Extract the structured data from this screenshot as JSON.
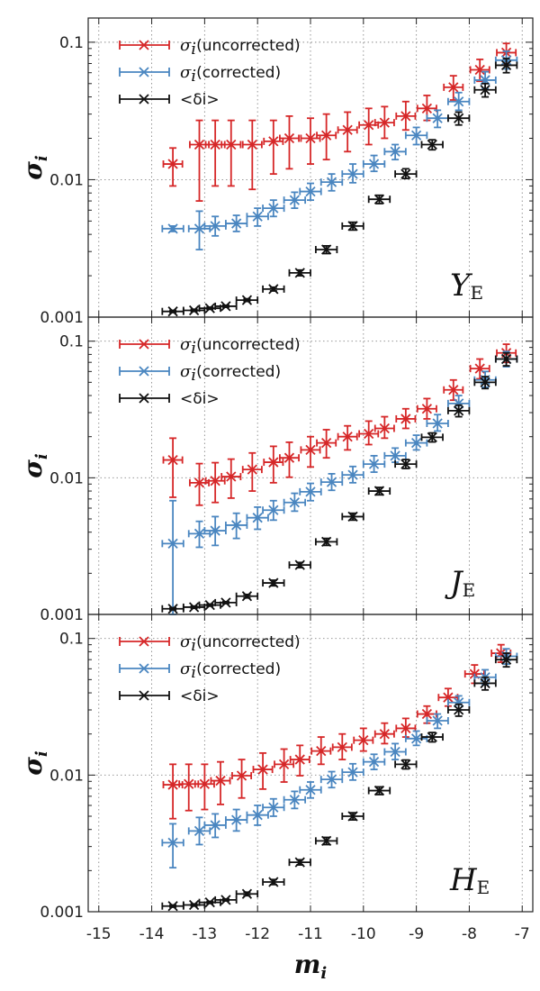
{
  "chart_data": [
    {
      "type": "scatter",
      "panel_label": "Y",
      "panel_label_sub": "E",
      "ylabel": "σ",
      "ylabel_sub": "i",
      "xlabel": "m",
      "xlabel_sub": "i",
      "xlim": [
        -15.2,
        -6.8
      ],
      "ylim": [
        0.001,
        0.15
      ],
      "yscale": "log",
      "grid": true,
      "legend_position": "top-left",
      "x_ticks": [
        "-15",
        "-14",
        "-13",
        "-12",
        "-11",
        "-10",
        "-9",
        "-8",
        "-7"
      ],
      "y_ticks": [
        "0.001",
        "0.01",
        "0.1"
      ],
      "series": [
        {
          "name": "σi (uncorrected)",
          "legend_symbol": "σ",
          "legend_symbol_sub": "i",
          "legend_text": "(uncorrected)",
          "color": "#d62728",
          "x": [
            -13.6,
            -13.1,
            -12.8,
            -12.5,
            -12.1,
            -11.7,
            -11.4,
            -11.0,
            -10.7,
            -10.3,
            -9.9,
            -9.6,
            -9.2,
            -8.8,
            -8.3,
            -7.8,
            -7.3
          ],
          "y": [
            0.013,
            0.018,
            0.018,
            0.018,
            0.018,
            0.019,
            0.02,
            0.02,
            0.021,
            0.023,
            0.025,
            0.026,
            0.029,
            0.033,
            0.047,
            0.063,
            0.084
          ],
          "ylo": [
            0.009,
            0.007,
            0.009,
            0.009,
            0.0085,
            0.011,
            0.012,
            0.013,
            0.014,
            0.016,
            0.018,
            0.02,
            0.023,
            0.027,
            0.038,
            0.052,
            0.07
          ],
          "yhi": [
            0.017,
            0.027,
            0.027,
            0.027,
            0.027,
            0.027,
            0.029,
            0.028,
            0.03,
            0.031,
            0.033,
            0.034,
            0.037,
            0.041,
            0.057,
            0.075,
            0.098
          ],
          "xerr": 0.18
        },
        {
          "name": "σi (corrected)",
          "legend_symbol": "σ",
          "legend_symbol_sub": "i",
          "legend_text": "(corrected)",
          "color": "#4a86c0",
          "x": [
            -13.6,
            -13.1,
            -12.8,
            -12.4,
            -12.0,
            -11.7,
            -11.3,
            -11.0,
            -10.6,
            -10.2,
            -9.8,
            -9.4,
            -9.0,
            -8.6,
            -8.2,
            -7.7,
            -7.3
          ],
          "y": [
            0.0044,
            0.0044,
            0.0046,
            0.0048,
            0.0054,
            0.0062,
            0.0071,
            0.0082,
            0.0096,
            0.011,
            0.013,
            0.016,
            0.021,
            0.028,
            0.037,
            0.053,
            0.074
          ],
          "ylo": [
            0.0042,
            0.0031,
            0.0039,
            0.0042,
            0.0046,
            0.0054,
            0.0062,
            0.0071,
            0.0083,
            0.0095,
            0.0115,
            0.014,
            0.018,
            0.024,
            0.032,
            0.046,
            0.064
          ],
          "yhi": [
            0.0046,
            0.0059,
            0.0054,
            0.0055,
            0.0062,
            0.0071,
            0.0081,
            0.0094,
            0.011,
            0.013,
            0.015,
            0.018,
            0.024,
            0.032,
            0.043,
            0.061,
            0.086
          ],
          "xerr": 0.2
        },
        {
          "name": "<δi>",
          "legend_symbol": "",
          "legend_symbol_sub": "",
          "legend_text": "<δi>",
          "color": "#111111",
          "x": [
            -13.6,
            -13.2,
            -12.9,
            -12.6,
            -12.2,
            -11.7,
            -11.2,
            -10.7,
            -10.2,
            -9.7,
            -9.2,
            -8.7,
            -8.2,
            -7.7,
            -7.3
          ],
          "y": [
            0.0011,
            0.00112,
            0.00116,
            0.0012,
            0.00133,
            0.0016,
            0.0021,
            0.0031,
            0.0046,
            0.0072,
            0.011,
            0.018,
            0.028,
            0.045,
            0.068
          ],
          "ylo": [
            0.00108,
            0.0011,
            0.00114,
            0.00118,
            0.0013,
            0.00155,
            0.002,
            0.0029,
            0.0043,
            0.0067,
            0.0102,
            0.0165,
            0.025,
            0.04,
            0.06
          ],
          "yhi": [
            0.00112,
            0.00114,
            0.00118,
            0.00122,
            0.00136,
            0.00165,
            0.0022,
            0.0033,
            0.0049,
            0.0077,
            0.012,
            0.0195,
            0.031,
            0.05,
            0.076
          ],
          "xerr": 0.2
        }
      ]
    },
    {
      "type": "scatter",
      "panel_label": "J",
      "panel_label_sub": "E",
      "ylabel": "σ",
      "ylabel_sub": "i",
      "xlabel": "m",
      "xlabel_sub": "i",
      "xlim": [
        -15.2,
        -6.8
      ],
      "ylim": [
        0.001,
        0.15
      ],
      "yscale": "log",
      "grid": true,
      "legend_position": "top-left",
      "x_ticks": [
        "-15",
        "-14",
        "-13",
        "-12",
        "-11",
        "-10",
        "-9",
        "-8",
        "-7"
      ],
      "y_ticks": [
        "0.001",
        "0.01",
        "0.1"
      ],
      "series": [
        {
          "name": "σi (uncorrected)",
          "legend_symbol": "σ",
          "legend_symbol_sub": "i",
          "legend_text": "(uncorrected)",
          "color": "#d62728",
          "x": [
            -13.6,
            -13.1,
            -12.8,
            -12.5,
            -12.1,
            -11.7,
            -11.4,
            -11.0,
            -10.7,
            -10.3,
            -9.9,
            -9.6,
            -9.2,
            -8.8,
            -8.3,
            -7.8,
            -7.3
          ],
          "y": [
            0.0135,
            0.0092,
            0.0095,
            0.0102,
            0.0115,
            0.013,
            0.014,
            0.016,
            0.018,
            0.02,
            0.021,
            0.023,
            0.027,
            0.032,
            0.044,
            0.063,
            0.082
          ],
          "ylo": [
            0.0072,
            0.0063,
            0.0066,
            0.0071,
            0.008,
            0.0092,
            0.0101,
            0.012,
            0.014,
            0.016,
            0.0175,
            0.0195,
            0.023,
            0.027,
            0.037,
            0.053,
            0.07
          ],
          "yhi": [
            0.0195,
            0.0127,
            0.0129,
            0.0137,
            0.0152,
            0.017,
            0.0182,
            0.02,
            0.0225,
            0.024,
            0.026,
            0.028,
            0.032,
            0.038,
            0.052,
            0.074,
            0.095
          ],
          "xerr": 0.18
        },
        {
          "name": "σi (corrected)",
          "legend_symbol": "σ",
          "legend_symbol_sub": "i",
          "legend_text": "(corrected)",
          "color": "#4a86c0",
          "x": [
            -13.6,
            -13.1,
            -12.8,
            -12.4,
            -12.0,
            -11.7,
            -11.3,
            -11.0,
            -10.6,
            -10.2,
            -9.8,
            -9.4,
            -9.0,
            -8.6,
            -8.2,
            -7.7,
            -7.3
          ],
          "y": [
            0.0033,
            0.0039,
            0.0041,
            0.0045,
            0.0051,
            0.0058,
            0.0066,
            0.0079,
            0.0093,
            0.0105,
            0.0126,
            0.0145,
            0.018,
            0.025,
            0.035,
            0.052,
            0.074
          ],
          "ylo": [
            0.001,
            0.0031,
            0.0032,
            0.0036,
            0.0042,
            0.0049,
            0.0057,
            0.0068,
            0.0081,
            0.0092,
            0.011,
            0.013,
            0.016,
            0.022,
            0.031,
            0.046,
            0.065
          ],
          "yhi": [
            0.0068,
            0.0048,
            0.0052,
            0.0055,
            0.0061,
            0.0068,
            0.0077,
            0.0091,
            0.0107,
            0.0121,
            0.0145,
            0.0165,
            0.0205,
            0.029,
            0.04,
            0.06,
            0.084
          ],
          "xerr": 0.2
        },
        {
          "name": "<δi>",
          "legend_symbol": "",
          "legend_symbol_sub": "",
          "legend_text": "<δi>",
          "color": "#111111",
          "x": [
            -13.6,
            -13.2,
            -12.9,
            -12.6,
            -12.2,
            -11.7,
            -11.2,
            -10.7,
            -10.2,
            -9.7,
            -9.2,
            -8.7,
            -8.2,
            -7.7,
            -7.3
          ],
          "y": [
            0.0011,
            0.00113,
            0.00117,
            0.00122,
            0.00136,
            0.0017,
            0.0023,
            0.0034,
            0.0052,
            0.008,
            0.0126,
            0.0198,
            0.031,
            0.05,
            0.074
          ],
          "ylo": [
            0.00108,
            0.00111,
            0.00115,
            0.0012,
            0.00132,
            0.00162,
            0.0022,
            0.0032,
            0.0049,
            0.0075,
            0.0117,
            0.0183,
            0.028,
            0.045,
            0.066
          ],
          "yhi": [
            0.00112,
            0.00115,
            0.00119,
            0.00124,
            0.0014,
            0.00178,
            0.0024,
            0.0036,
            0.0055,
            0.0085,
            0.0136,
            0.0213,
            0.034,
            0.055,
            0.082
          ],
          "xerr": 0.2
        }
      ]
    },
    {
      "type": "scatter",
      "panel_label": "H",
      "panel_label_sub": "E",
      "ylabel": "σ",
      "ylabel_sub": "i",
      "xlabel": "m",
      "xlabel_sub": "i",
      "xlim": [
        -15.2,
        -6.8
      ],
      "ylim": [
        0.001,
        0.15
      ],
      "yscale": "log",
      "grid": true,
      "legend_position": "top-left",
      "x_ticks": [
        "-15",
        "-14",
        "-13",
        "-12",
        "-11",
        "-10",
        "-9",
        "-8",
        "-7"
      ],
      "y_ticks": [
        "0.001",
        "0.01",
        "0.1"
      ],
      "series": [
        {
          "name": "σi (uncorrected)",
          "legend_symbol": "σ",
          "legend_symbol_sub": "i",
          "legend_text": "(uncorrected)",
          "color": "#d62728",
          "x": [
            -13.6,
            -13.3,
            -13.0,
            -12.7,
            -12.3,
            -11.9,
            -11.5,
            -11.2,
            -10.8,
            -10.4,
            -10.0,
            -9.6,
            -9.2,
            -8.8,
            -8.4,
            -7.9,
            -7.4
          ],
          "y": [
            0.0085,
            0.0086,
            0.0086,
            0.0091,
            0.0099,
            0.011,
            0.012,
            0.013,
            0.015,
            0.016,
            0.018,
            0.02,
            0.022,
            0.028,
            0.037,
            0.055,
            0.078
          ],
          "ylo": [
            0.0048,
            0.0055,
            0.0056,
            0.0061,
            0.0068,
            0.0079,
            0.0089,
            0.0099,
            0.012,
            0.013,
            0.015,
            0.017,
            0.019,
            0.024,
            0.032,
            0.047,
            0.067
          ],
          "yhi": [
            0.012,
            0.012,
            0.012,
            0.0125,
            0.013,
            0.0145,
            0.0155,
            0.0165,
            0.019,
            0.02,
            0.022,
            0.024,
            0.026,
            0.032,
            0.043,
            0.064,
            0.09
          ],
          "xerr": 0.18
        },
        {
          "name": "σi (corrected)",
          "legend_symbol": "σ",
          "legend_symbol_sub": "i",
          "legend_text": "(corrected)",
          "color": "#4a86c0",
          "x": [
            -13.6,
            -13.1,
            -12.8,
            -12.4,
            -12.0,
            -11.7,
            -11.3,
            -11.0,
            -10.6,
            -10.2,
            -9.8,
            -9.4,
            -9.0,
            -8.6,
            -8.2,
            -7.7,
            -7.3
          ],
          "y": [
            0.0032,
            0.0039,
            0.0043,
            0.0047,
            0.0051,
            0.0058,
            0.0066,
            0.0078,
            0.0093,
            0.0105,
            0.0125,
            0.0148,
            0.0185,
            0.025,
            0.034,
            0.052,
            0.074
          ],
          "ylo": [
            0.0021,
            0.0031,
            0.0035,
            0.0039,
            0.0043,
            0.005,
            0.0057,
            0.0068,
            0.0081,
            0.0092,
            0.011,
            0.013,
            0.0165,
            0.022,
            0.03,
            0.046,
            0.065
          ],
          "yhi": [
            0.0044,
            0.0049,
            0.0052,
            0.0056,
            0.006,
            0.0067,
            0.0076,
            0.0089,
            0.0106,
            0.0121,
            0.0142,
            0.017,
            0.021,
            0.028,
            0.038,
            0.059,
            0.084
          ],
          "xerr": 0.2
        },
        {
          "name": "<δi>",
          "legend_symbol": "",
          "legend_symbol_sub": "",
          "legend_text": "<δi>",
          "color": "#111111",
          "x": [
            -13.6,
            -13.2,
            -12.9,
            -12.6,
            -12.2,
            -11.7,
            -11.2,
            -10.7,
            -10.2,
            -9.7,
            -9.2,
            -8.7,
            -8.2,
            -7.7,
            -7.3
          ],
          "y": [
            0.0011,
            0.00112,
            0.00117,
            0.00122,
            0.00135,
            0.00165,
            0.0023,
            0.0033,
            0.005,
            0.0077,
            0.012,
            0.019,
            0.03,
            0.047,
            0.07
          ],
          "ylo": [
            0.00108,
            0.0011,
            0.00115,
            0.0012,
            0.00131,
            0.00158,
            0.0022,
            0.0031,
            0.0047,
            0.0072,
            0.0111,
            0.0175,
            0.027,
            0.042,
            0.062
          ],
          "yhi": [
            0.00112,
            0.00114,
            0.00119,
            0.00124,
            0.00139,
            0.00172,
            0.0024,
            0.0035,
            0.0053,
            0.0082,
            0.0129,
            0.0205,
            0.033,
            0.052,
            0.078
          ],
          "xerr": 0.2
        }
      ]
    }
  ]
}
